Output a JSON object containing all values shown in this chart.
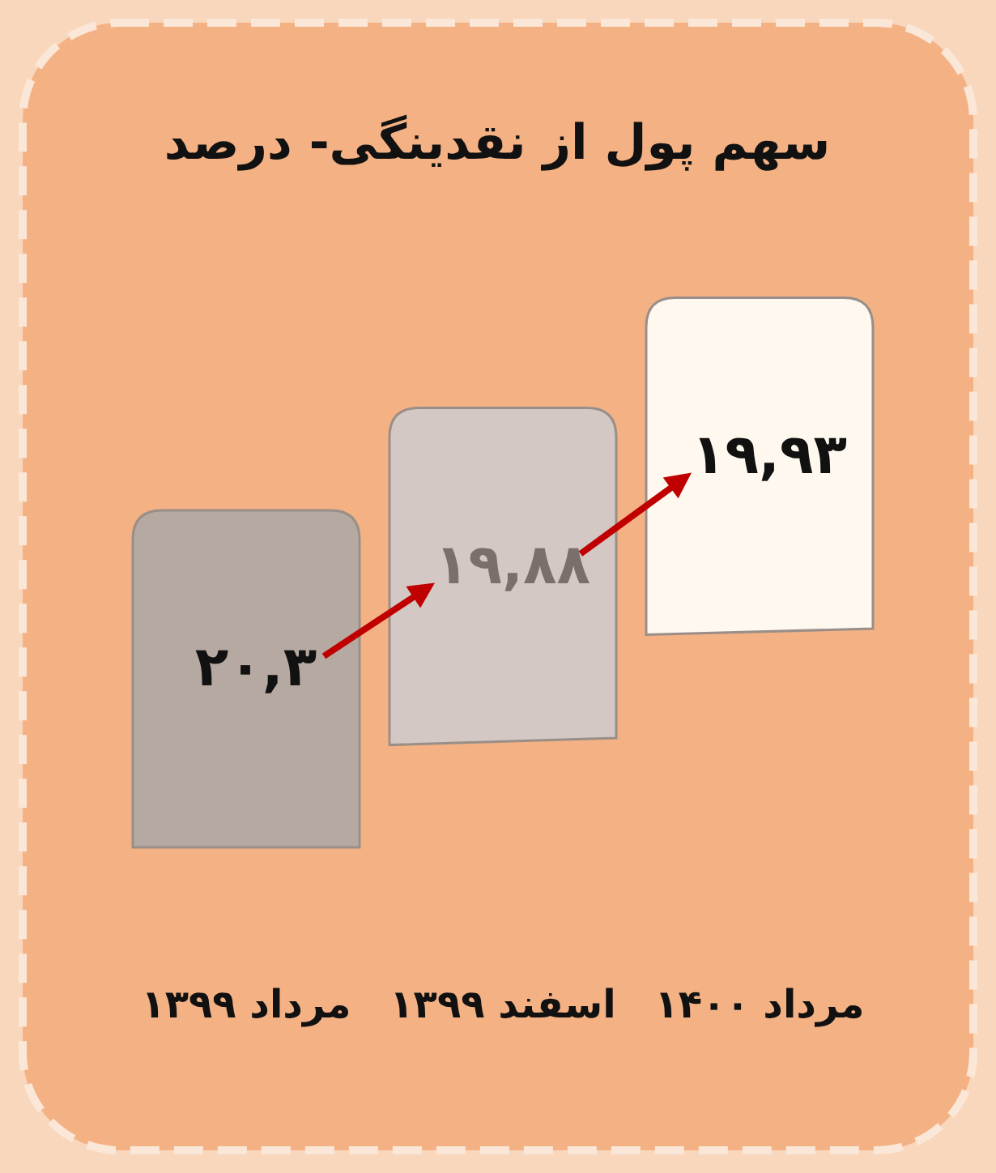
{
  "chart_data": {
    "type": "other",
    "title": "سهم پول از نقدینگی- درصد",
    "categories": [
      "مرداد ۱۳۹۹",
      "اسفند ۱۳۹۹",
      "مرداد ۱۴۰۰"
    ],
    "values": [
      20.3,
      19.88,
      19.93
    ],
    "value_labels": [
      "۲۰,۳",
      "۱۹,۸۸",
      "۱۹,۹۳"
    ],
    "colors": [
      "#b5a9a1",
      "#d3c8c3",
      "#fef8ef"
    ]
  }
}
